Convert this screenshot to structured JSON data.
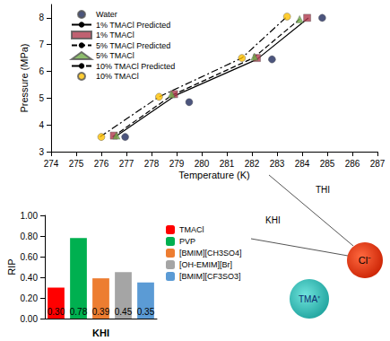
{
  "chart_data": [
    {
      "type": "scatter",
      "x_label": "Temperature (K)",
      "y_label": "Pressure (MPa)",
      "xlim": [
        274,
        287
      ],
      "xticks": [
        274,
        275,
        276,
        277,
        278,
        279,
        280,
        281,
        282,
        283,
        284,
        285,
        286,
        287
      ],
      "ylim": [
        3,
        8.5
      ],
      "yticks": [
        3,
        4,
        5,
        6,
        7,
        8
      ],
      "grid": false,
      "legend": "upper left",
      "annotations": [
        "THI"
      ],
      "series": [
        {
          "name": "Water",
          "type": "scatter",
          "marker": "circle",
          "color": "#1f2a5c",
          "x": [
            276.95,
            279.5,
            282.8,
            284.8
          ],
          "values": [
            3.55,
            4.85,
            6.45,
            8.0
          ]
        },
        {
          "name": "1% TMACl Predicted",
          "type": "line",
          "line_style": "solid",
          "color": "#000000",
          "x": [
            276.55,
            278.95,
            282.2,
            284.25
          ],
          "values": [
            3.55,
            5.1,
            6.45,
            8.0
          ]
        },
        {
          "name": "1% TMACl",
          "type": "scatter",
          "marker": "square",
          "color": "#b03a4e",
          "x": [
            276.5,
            278.9,
            282.2,
            284.2
          ],
          "values": [
            3.6,
            5.15,
            6.5,
            8.0
          ]
        },
        {
          "name": "5% TMACl Predicted",
          "type": "line",
          "line_style": "dashed",
          "color": "#000000",
          "x": [
            276.45,
            278.8,
            282.05,
            283.9
          ],
          "values": [
            3.55,
            5.1,
            6.5,
            7.95
          ]
        },
        {
          "name": "5% TMACl",
          "type": "scatter",
          "marker": "triangle",
          "color": "#70ad47",
          "x": [
            276.6,
            278.8,
            282.1,
            283.9
          ],
          "values": [
            3.6,
            5.15,
            6.55,
            7.95
          ]
        },
        {
          "name": "10% TMACl Predicted",
          "type": "line",
          "line_style": "dashdot",
          "color": "#000000",
          "x": [
            275.95,
            278.3,
            281.6,
            283.4
          ],
          "values": [
            3.55,
            5.05,
            6.5,
            8.05
          ]
        },
        {
          "name": "10% TMACl",
          "type": "scatter",
          "marker": "circle",
          "color": "#ffc000",
          "x": [
            276.0,
            278.3,
            281.6,
            283.4
          ],
          "values": [
            3.55,
            5.05,
            6.5,
            8.05
          ]
        }
      ]
    },
    {
      "type": "bar",
      "x_label": "KHI",
      "y_label": "RIP",
      "categories": [
        "TMACl",
        "PVP",
        "[BMIM][CH3SO4]",
        "[OH-EMIM][Br]",
        "[BMIM][CF3SO3]"
      ],
      "values": [
        0.3,
        0.78,
        0.39,
        0.45,
        0.35
      ],
      "value_labels": [
        "0.30",
        "0.78",
        "0.39",
        "0.45",
        "0.35"
      ],
      "colors": [
        "#ff0000",
        "#00b050",
        "#ed7d31",
        "#a5a5a5",
        "#5b9bd5"
      ],
      "ylim": [
        0,
        1
      ],
      "yticks": [
        {
          "value": 0,
          "label": "0.00"
        },
        {
          "value": 0.2,
          "label": "0.20"
        },
        {
          "value": 0.4,
          "label": "0.40"
        },
        {
          "value": 0.6,
          "label": "0.60"
        },
        {
          "value": 0.8,
          "label": "0.80"
        },
        {
          "value": 1,
          "label": "1.00"
        }
      ],
      "grid": false,
      "legend": "right",
      "data_labels": true,
      "tick_labels": "y",
      "annotations": [
        "KHI"
      ]
    }
  ],
  "ions": {
    "anion": "Cl⁻",
    "cation": "TMA⁺"
  }
}
